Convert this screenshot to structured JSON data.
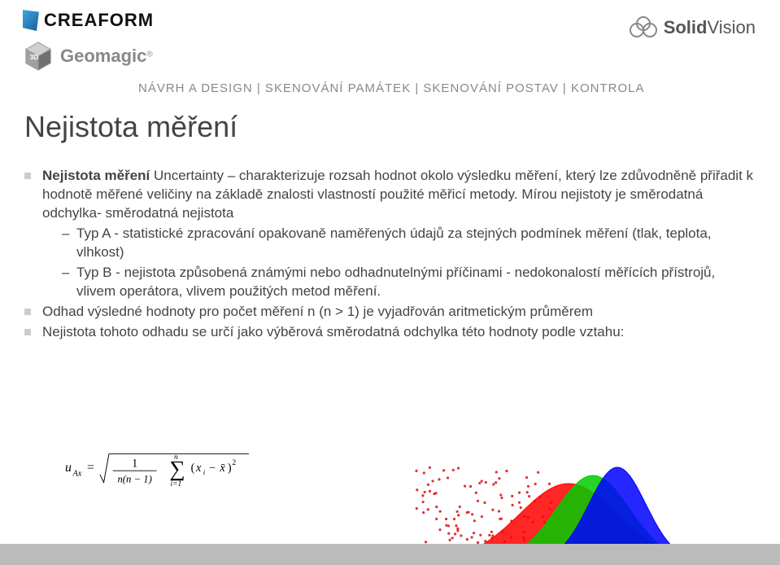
{
  "logos": {
    "creaform": "CREAFORM",
    "geomagic": "Geomagic",
    "solidvision_bold": "Solid",
    "solidvision_light": "Vision"
  },
  "breadcrumb": {
    "items": [
      "NÁVRH A DESIGN",
      "SKENOVÁNÍ PAMÁTEK",
      "SKENOVÁNÍ POSTAV",
      "KONTROLA"
    ],
    "separator": " | "
  },
  "title": "Nejistota měření",
  "bullets": [
    {
      "lead_bold": "Nejistota měření",
      "rest": "  Uncertainty – charakterizuje rozsah hodnot okolo výsledku měření, který lze zdůvodněně přiřadit k hodnotě měřené veličiny na základě znalosti vlastností použité měřicí metody. Mírou nejistoty je směrodatná odchylka- směrodatná nejistota",
      "subs": [
        "Typ A - statistické zpracování opakovaně naměřených údajů za stejných podmínek měření (tlak, teplota, vlhkost)",
        "Typ B - nejistota způsobená známými nebo odhadnutelnými příčinami - nedokonalostí měřících přístrojů, vlivem operátora, vlivem použitých metod měření."
      ]
    },
    {
      "rest": "Odhad výsledné hodnoty pro počet měření n (n > 1) je vyjadřován aritmetickým průměrem"
    },
    {
      "rest": "Nejistota tohoto odhadu se určí jako výběrová směrodatná odchylka této hodnoty podle vztahu:"
    }
  ],
  "formula": {
    "lhs": "u",
    "lhs_sub": "Ax",
    "frac_num": "1",
    "frac_den": "n(n − 1)",
    "sum_upper": "n",
    "sum_lower": "i=1",
    "term": "(xᵢ − x̄)²"
  },
  "viz": {
    "scatter_color": "#e03030",
    "curve_colors": [
      "#ff0000",
      "#00cc00",
      "#0000ff"
    ],
    "axis_color": "#000000",
    "background": "#ffffff",
    "scatter_points": 120,
    "curve_means": [
      200,
      230,
      260
    ],
    "curve_sigmas": [
      60,
      45,
      35
    ],
    "curve_heights": [
      95,
      105,
      115
    ]
  },
  "colors": {
    "title": "#444444",
    "text": "#444444",
    "breadcrumb": "#888888",
    "bullet_square": "#cccccc"
  }
}
